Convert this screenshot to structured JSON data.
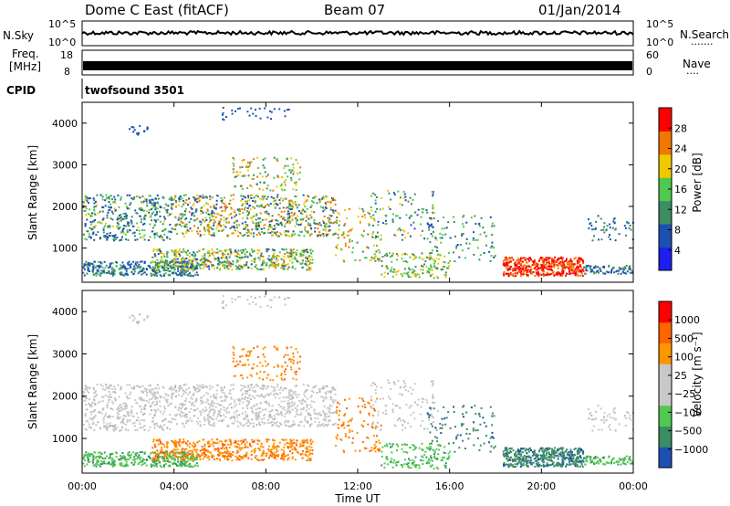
{
  "header": {
    "station": "Dome C East (fitACF)",
    "beam": "Beam 07",
    "date": "01/Jan/2014"
  },
  "noise_panel": {
    "left_label": "N.Sky",
    "left_ticks": [
      "10^5",
      "10^0"
    ],
    "right_ticks": [
      "10^5",
      "10^0"
    ],
    "right_label": "N.Search",
    "right_dots": "·······"
  },
  "freq_panel": {
    "left_label_1": "Freq.",
    "left_label_2": "[MHz]",
    "left_ticks": [
      "18",
      "8"
    ],
    "right_ticks": [
      "60",
      "0"
    ],
    "right_label": "Nave",
    "right_dots": "····"
  },
  "cpid_panel": {
    "label": "CPID",
    "program": "twofsound 3501"
  },
  "icons": {
    "plot-type": "range-time-intensity"
  },
  "colors": {
    "power_scale": [
      "#1e1ef0",
      "#1e50b4",
      "#3c8c64",
      "#50c850",
      "#f0c800",
      "#f07800",
      "#ff0000"
    ],
    "velocity_scale": [
      "#ff0000",
      "#ff6400",
      "#ff9600",
      "#c8c8c8",
      "#c8c8c8",
      "#50c850",
      "#3c8c64",
      "#1e50b4"
    ]
  },
  "chart_data": [
    {
      "type": "heatmap",
      "name": "Power",
      "xlabel": "Time UT",
      "ylabel": "Slant Range [km]",
      "colorbar_label": "Power [dB]",
      "x_range": [
        "00:00",
        "24:00"
      ],
      "ylim": [
        180,
        4500
      ],
      "x_ticks": [
        "00:00",
        "04:00",
        "08:00",
        "12:00",
        "16:00",
        "20:00",
        "00:00"
      ],
      "y_ticks": [
        1000,
        2000,
        3000,
        4000
      ],
      "colorbar_ticks": [
        4,
        8,
        12,
        16,
        20,
        24,
        28
      ],
      "colorbar_range": [
        0,
        32
      ]
    },
    {
      "type": "heatmap",
      "name": "Velocity",
      "xlabel": "Time UT",
      "ylabel": "Slant Range [km]",
      "colorbar_label": "Velocity [m s⁻¹]",
      "x_range": [
        "00:00",
        "24:00"
      ],
      "ylim": [
        180,
        4500
      ],
      "x_ticks": [
        "00:00",
        "04:00",
        "08:00",
        "12:00",
        "16:00",
        "20:00",
        "00:00"
      ],
      "y_ticks": [
        1000,
        2000,
        3000,
        4000
      ],
      "colorbar_ticks": [
        "1000",
        "500",
        "100",
        "25",
        "−25",
        "−100",
        "−500",
        "−1000"
      ]
    }
  ]
}
